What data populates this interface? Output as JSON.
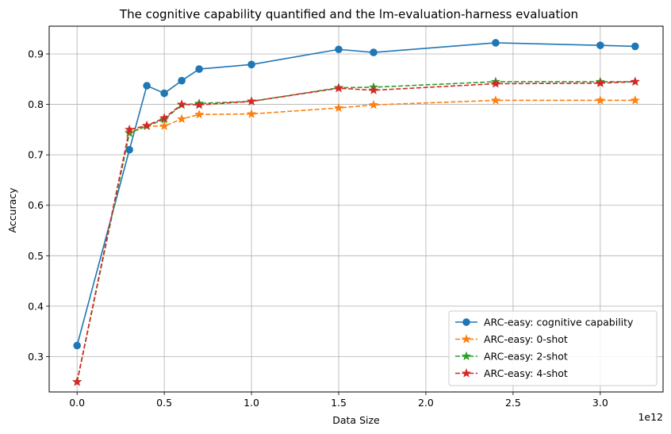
{
  "chart_data": {
    "type": "line",
    "title": "The cognitive capability quantified and the lm-evaluation-harness evaluation",
    "xlabel": "Data Size",
    "ylabel": "Accuracy",
    "x_offset_label": "1e12",
    "xlim": [
      -0.16,
      3.36
    ],
    "ylim": [
      0.23,
      0.955
    ],
    "x_ticks": [
      0.0,
      0.5,
      1.0,
      1.5,
      2.0,
      2.5,
      3.0
    ],
    "x_tick_labels": [
      "0.0",
      "0.5",
      "1.0",
      "1.5",
      "2.0",
      "2.5",
      "3.0"
    ],
    "y_ticks": [
      0.3,
      0.4,
      0.5,
      0.6,
      0.7,
      0.8,
      0.9
    ],
    "y_tick_labels": [
      "0.3",
      "0.4",
      "0.5",
      "0.6",
      "0.7",
      "0.8",
      "0.9"
    ],
    "grid": true,
    "legend_position": "lower-right",
    "series": [
      {
        "name": "ARC-easy: cognitive capability",
        "color": "#1f77b4",
        "linestyle": "solid",
        "marker": "circle",
        "x": [
          0.0,
          0.3,
          0.4,
          0.5,
          0.6,
          0.7,
          1.0,
          1.5,
          1.7,
          2.4,
          3.0,
          3.2
        ],
        "y": [
          0.322,
          0.71,
          0.837,
          0.822,
          0.847,
          0.87,
          0.879,
          0.909,
          0.903,
          0.922,
          0.917,
          0.915
        ]
      },
      {
        "name": "ARC-easy: 0-shot",
        "color": "#ff7f0e",
        "linestyle": "dashed",
        "marker": "star",
        "x": [
          0.0,
          0.3,
          0.4,
          0.5,
          0.6,
          0.7,
          1.0,
          1.5,
          1.7,
          2.4,
          3.0,
          3.2
        ],
        "y": [
          0.25,
          0.745,
          0.757,
          0.757,
          0.771,
          0.78,
          0.781,
          0.793,
          0.799,
          0.808,
          0.808,
          0.808
        ]
      },
      {
        "name": "ARC-easy: 2-shot",
        "color": "#2ca02c",
        "linestyle": "dashed",
        "marker": "star",
        "x": [
          0.0,
          0.3,
          0.4,
          0.5,
          0.6,
          0.7,
          1.0,
          1.5,
          1.7,
          2.4,
          3.0,
          3.2
        ],
        "y": [
          0.25,
          0.743,
          0.757,
          0.77,
          0.799,
          0.802,
          0.806,
          0.833,
          0.834,
          0.845,
          0.845,
          0.845
        ]
      },
      {
        "name": "ARC-easy: 4-shot",
        "color": "#d62728",
        "linestyle": "dashed",
        "marker": "star",
        "x": [
          0.0,
          0.3,
          0.4,
          0.5,
          0.6,
          0.7,
          1.0,
          1.5,
          1.7,
          2.4,
          3.0,
          3.2
        ],
        "y": [
          0.25,
          0.75,
          0.758,
          0.773,
          0.8,
          0.799,
          0.806,
          0.832,
          0.828,
          0.841,
          0.842,
          0.845
        ]
      }
    ]
  }
}
